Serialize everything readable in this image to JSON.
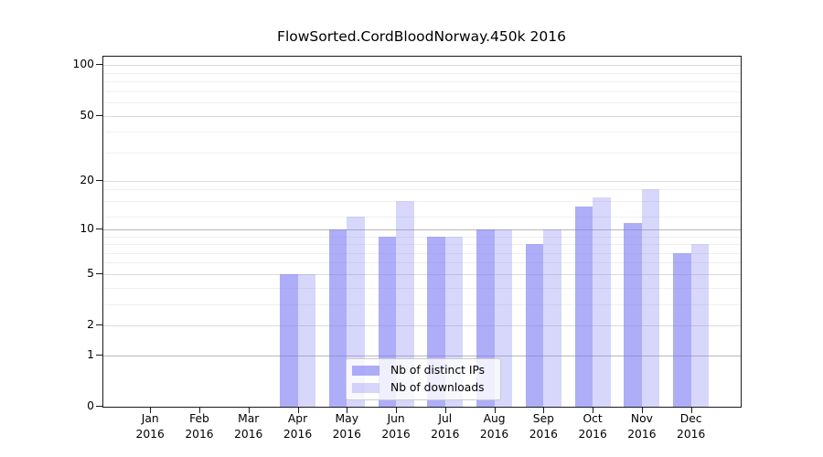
{
  "figure": {
    "title": "FlowSorted.CordBloodNorway.450k 2016"
  },
  "chart_data": {
    "type": "bar",
    "title": "FlowSorted.CordBloodNorway.450k 2016",
    "categories": [
      "Jan",
      "Feb",
      "Mar",
      "Apr",
      "May",
      "Jun",
      "Jul",
      "Aug",
      "Sep",
      "Oct",
      "Nov",
      "Dec"
    ],
    "x_year_label": "2016",
    "series": [
      {
        "name": "Nb of distinct IPs",
        "color_hex": "#a6a6f8",
        "fill": "rgba(122,122,243,0.62)",
        "values": [
          0,
          0,
          0,
          5,
          10,
          9,
          9,
          10,
          8,
          14,
          11,
          7
        ]
      },
      {
        "name": "Nb of downloads",
        "color_hex": "#d8d8fa",
        "fill": "rgba(122,122,243,0.30)",
        "values": [
          0,
          0,
          0,
          5,
          12,
          15,
          9,
          10,
          10,
          16,
          18,
          8
        ]
      }
    ],
    "y_axis": {
      "scale": "log1p",
      "ylim": [
        0,
        100
      ],
      "major_ticks": [
        0,
        1,
        2,
        5,
        10,
        20,
        50,
        100
      ],
      "emphasized_gridlines": [
        1,
        10
      ],
      "minor_gridlines": [
        3,
        4,
        6,
        7,
        8,
        9,
        12,
        15,
        18,
        30,
        40,
        60,
        70,
        80,
        90
      ]
    },
    "grid": true,
    "legend_position": "bottom-center",
    "colors": {
      "grid_major": "#dbdbdb",
      "grid_emphasized": "#b9b9b9",
      "grid_minor": "#f0f0f0",
      "axis": "#1a1a1a"
    }
  }
}
